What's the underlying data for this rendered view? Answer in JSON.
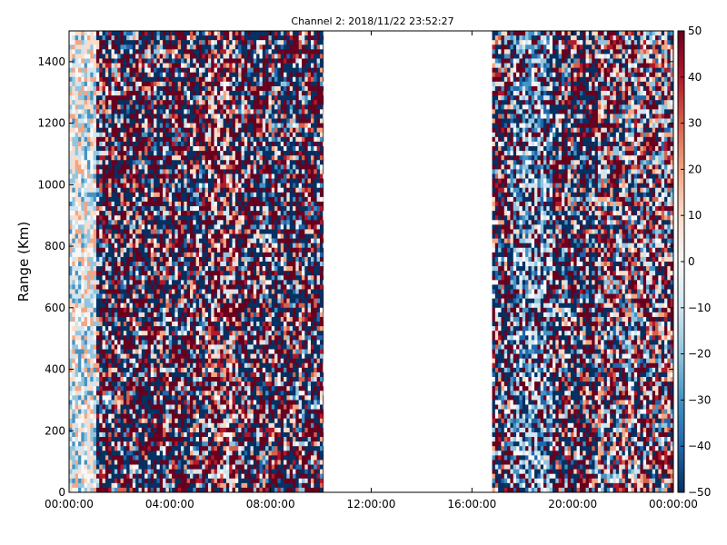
{
  "chart_data": {
    "type": "heatmap",
    "title": "Channel 2: 2018/11/22 23:52:27",
    "ylabel": "Range (Km)",
    "xlabel": "",
    "x_ticks": [
      "00:00:00",
      "04:00:00",
      "08:00:00",
      "12:00:00",
      "16:00:00",
      "20:00:00",
      "00:00:00"
    ],
    "y_ticks": [
      0,
      200,
      400,
      600,
      800,
      1000,
      1200,
      1400
    ],
    "xlim_hours": [
      0,
      24
    ],
    "ylim": [
      0,
      1500
    ],
    "colorbar": {
      "ticks": [
        50,
        40,
        30,
        20,
        10,
        0,
        -10,
        -20,
        -30,
        -40,
        -50
      ],
      "range": [
        -50,
        50
      ],
      "colormap": "RdBu_r",
      "colors": [
        "#053061",
        "#2166ac",
        "#4393c3",
        "#92c5de",
        "#d1e5f0",
        "#f7f7f7",
        "#fddbc7",
        "#f4a582",
        "#d6604d",
        "#b2182b",
        "#67001f"
      ]
    },
    "data_segments_hours": [
      [
        0,
        10.1
      ],
      [
        16.8,
        24
      ]
    ],
    "grid": false,
    "legend": "none"
  }
}
